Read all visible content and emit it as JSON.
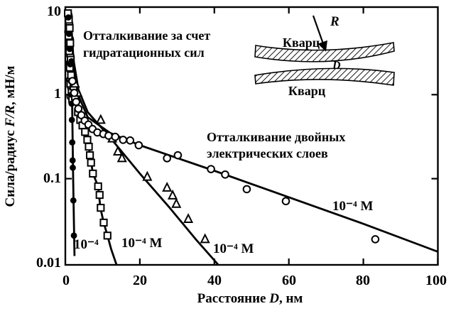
{
  "figure": {
    "background": "#ffffff",
    "ink": "#000000"
  },
  "axes": {
    "ylabel_prefix": "Сила/радиус ",
    "ylabel_math": "F/R",
    "ylabel_suffix": ", мН/м",
    "xlabel_prefix": "Расстояние ",
    "xlabel_math": "D",
    "xlabel_suffix": ", нм",
    "x_tick_labels": [
      "0",
      "20",
      "40",
      "60",
      "80",
      "100"
    ],
    "y_tick_labels": [
      "10",
      "1",
      "0.1",
      "0.01"
    ]
  },
  "annotations": {
    "hydration_line1": "Отталкивание за счет",
    "hydration_line2": "гидратационных сил",
    "ddl_line1": "Отталкивание двойных",
    "ddl_line2": "электрических слоев"
  },
  "inset": {
    "top_label": "Кварц",
    "bottom_label": "Кварц",
    "radius_label": "R",
    "gap_label": "D"
  },
  "chart_data": {
    "type": "scatter",
    "x_axis": {
      "label": "Расстояние D, нм",
      "scale": "linear",
      "range": [
        0,
        100
      ],
      "ticks": [
        0,
        20,
        40,
        60,
        80,
        100
      ]
    },
    "y_axis": {
      "label": "Сила/радиус F/R, мН/м",
      "scale": "log",
      "range": [
        0.01,
        10
      ],
      "ticks": [
        10,
        1,
        0.1,
        0.01
      ]
    },
    "grid": false,
    "series": [
      {
        "name": "hydration cluster open circles",
        "marker": "circle-open",
        "points": [
          [
            0.85,
            8.8
          ],
          [
            1.05,
            7.0
          ],
          [
            0.8,
            5.6
          ],
          [
            1.2,
            4.6
          ],
          [
            0.95,
            3.7
          ],
          [
            1.35,
            2.9
          ],
          [
            1.1,
            2.35
          ],
          [
            1.5,
            1.9
          ],
          [
            1.25,
            1.5
          ],
          [
            1.6,
            1.2
          ],
          [
            1.4,
            0.95
          ]
        ]
      },
      {
        "name": "hydration cluster open squares",
        "marker": "square-open",
        "points": [
          [
            0.7,
            9.3
          ],
          [
            0.95,
            7.8
          ],
          [
            1.15,
            6.2
          ],
          [
            0.9,
            5.0
          ],
          [
            1.3,
            4.1
          ],
          [
            1.05,
            3.3
          ],
          [
            1.45,
            2.6
          ],
          [
            1.2,
            2.1
          ],
          [
            1.55,
            1.7
          ],
          [
            1.35,
            1.35
          ],
          [
            1.7,
            1.08
          ],
          [
            1.85,
            0.88
          ]
        ]
      },
      {
        "name": "hydration cluster filled circles",
        "marker": "circle-filled",
        "points": [
          [
            0.8,
            8.3
          ],
          [
            1.0,
            5.3
          ],
          [
            1.15,
            3.5
          ],
          [
            1.3,
            2.3
          ],
          [
            1.5,
            1.45
          ],
          [
            1.65,
            1.0
          ]
        ]
      },
      {
        "name": "steepest curve (filled circles)",
        "label": "10⁻⁴",
        "marker": "circle-filled",
        "line": [
          [
            1.55,
            9.5
          ],
          [
            1.8,
            1.0
          ],
          [
            2.1,
            0.1
          ],
          [
            2.45,
            0.012
          ]
        ],
        "points": [
          [
            1.65,
            2.5
          ],
          [
            1.7,
            0.78
          ],
          [
            1.75,
            0.5
          ],
          [
            1.85,
            0.27
          ],
          [
            1.95,
            0.165
          ],
          [
            2.0,
            0.135
          ],
          [
            2.15,
            0.055
          ],
          [
            2.3,
            0.021
          ]
        ]
      },
      {
        "name": "second curve (open squares)",
        "label": "10⁻⁴ М",
        "marker": "square-open",
        "line": [
          [
            1.1,
            9.5
          ],
          [
            1.7,
            2.6
          ],
          [
            2.6,
            0.95
          ],
          [
            3.7,
            0.55
          ],
          [
            5.0,
            0.4
          ],
          [
            6.3,
            0.24
          ],
          [
            7.4,
            0.115
          ],
          [
            8.8,
            0.081
          ],
          [
            9.4,
            0.045
          ],
          [
            10.3,
            0.03
          ],
          [
            11.3,
            0.021
          ],
          [
            12.3,
            0.0145
          ],
          [
            13.9,
            0.009
          ]
        ],
        "points": [
          [
            2.2,
            1.25
          ],
          [
            2.6,
            0.95
          ],
          [
            3.4,
            0.62
          ],
          [
            4.0,
            0.5
          ],
          [
            4.6,
            0.43
          ],
          [
            5.3,
            0.36
          ],
          [
            5.9,
            0.29
          ],
          [
            6.3,
            0.24
          ],
          [
            6.6,
            0.19
          ],
          [
            6.9,
            0.155
          ],
          [
            7.4,
            0.115
          ],
          [
            8.8,
            0.081
          ],
          [
            9.2,
            0.064
          ],
          [
            9.5,
            0.045
          ],
          [
            10.3,
            0.03
          ],
          [
            11.3,
            0.021
          ]
        ]
      },
      {
        "name": "third curve (open triangles)",
        "label": "10⁻⁴ М",
        "marker": "triangle-open",
        "line": [
          [
            1.4,
            9.5
          ],
          [
            2.2,
            2.6
          ],
          [
            3.5,
            1.15
          ],
          [
            6,
            0.62
          ],
          [
            12,
            0.31
          ],
          [
            20,
            0.115
          ],
          [
            28,
            0.045
          ],
          [
            35,
            0.019
          ],
          [
            41,
            0.0095
          ]
        ],
        "points": [
          [
            2.6,
            1.35
          ],
          [
            3.3,
            1.05
          ],
          [
            9.5,
            0.5
          ],
          [
            12.6,
            0.3
          ],
          [
            14.1,
            0.21
          ],
          [
            15.2,
            0.175
          ],
          [
            22,
            0.105
          ],
          [
            27.3,
            0.078
          ],
          [
            28.8,
            0.063
          ],
          [
            29.8,
            0.05
          ],
          [
            33,
            0.033
          ],
          [
            37.5,
            0.019
          ]
        ]
      },
      {
        "name": "shallow curve (open circles)",
        "label": "10⁻⁴ М",
        "marker": "circle-open",
        "line": [
          [
            1.3,
            9.5
          ],
          [
            2.0,
            2.3
          ],
          [
            3.2,
            1.05
          ],
          [
            6,
            0.54
          ],
          [
            12,
            0.35
          ],
          [
            20,
            0.25
          ],
          [
            40,
            0.124
          ],
          [
            60,
            0.06
          ],
          [
            80,
            0.029
          ],
          [
            100,
            0.0135
          ]
        ],
        "points": [
          [
            1.9,
            1.45
          ],
          [
            2.4,
            1.05
          ],
          [
            2.9,
            0.82
          ],
          [
            3.5,
            0.68
          ],
          [
            4.3,
            0.57
          ],
          [
            5.2,
            0.49
          ],
          [
            6.2,
            0.44
          ],
          [
            7.3,
            0.39
          ],
          [
            8.6,
            0.355
          ],
          [
            10.2,
            0.34
          ],
          [
            11.6,
            0.325
          ],
          [
            13.4,
            0.315
          ],
          [
            15.5,
            0.29
          ],
          [
            17.4,
            0.285
          ],
          [
            19.7,
            0.25
          ],
          [
            27.3,
            0.175
          ],
          [
            30.2,
            0.19
          ],
          [
            39.1,
            0.13
          ],
          [
            42.9,
            0.112
          ],
          [
            48.7,
            0.075
          ],
          [
            59.2,
            0.054
          ],
          [
            83.2,
            0.019
          ]
        ]
      }
    ]
  }
}
